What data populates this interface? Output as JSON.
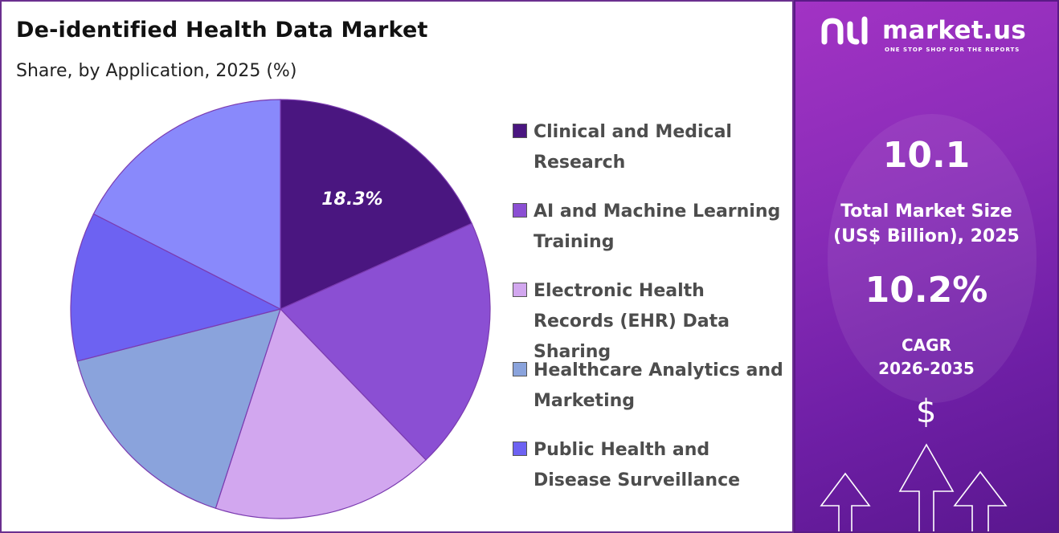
{
  "chart_data": {
    "type": "pie",
    "title": "De-identified Health Data Market",
    "subtitle": "Share, by Application, 2025 (%)",
    "slices": [
      {
        "label": "Clinical and Medical Research",
        "value": 18.3,
        "color": "#4a1680",
        "data_label": "18.3%"
      },
      {
        "label": "AI and Machine Learning Training",
        "value": 19.5,
        "color": "#8b4fd3",
        "data_label": ""
      },
      {
        "label": "Electronic Health Records (EHR) Data Sharing",
        "value": 17.2,
        "color": "#d2a7ef",
        "data_label": ""
      },
      {
        "label": "Healthcare Analytics and Marketing",
        "value": 16.0,
        "color": "#8aa3dc",
        "data_label": ""
      },
      {
        "label": "Public Health and Disease Surveillance",
        "value": 11.5,
        "color": "#6d62f2",
        "data_label": ""
      },
      {
        "label": "",
        "value": 17.5,
        "color": "#8989fb",
        "data_label": ""
      }
    ],
    "legend": {
      "placement": "right"
    },
    "start_angle": "top",
    "direction": "clockwise"
  },
  "brand": {
    "name": "market.us",
    "tagline": "ONE STOP SHOP FOR THE REPORTS",
    "logo_icon": "market-us-logo-icon"
  },
  "stats": {
    "market_size_value": "10.1",
    "market_size_label_line1": "Total Market Size",
    "market_size_label_line2": "(US$ Billion), 2025",
    "cagr_value": "10.2%",
    "cagr_label_line1": "CAGR",
    "cagr_label_line2": "2026-2035",
    "dollar_icon": "$"
  },
  "colors": {
    "panel_border": "#6b2f8f",
    "info_panel_gradient": [
      "#a233c4",
      "#5a178f"
    ]
  }
}
